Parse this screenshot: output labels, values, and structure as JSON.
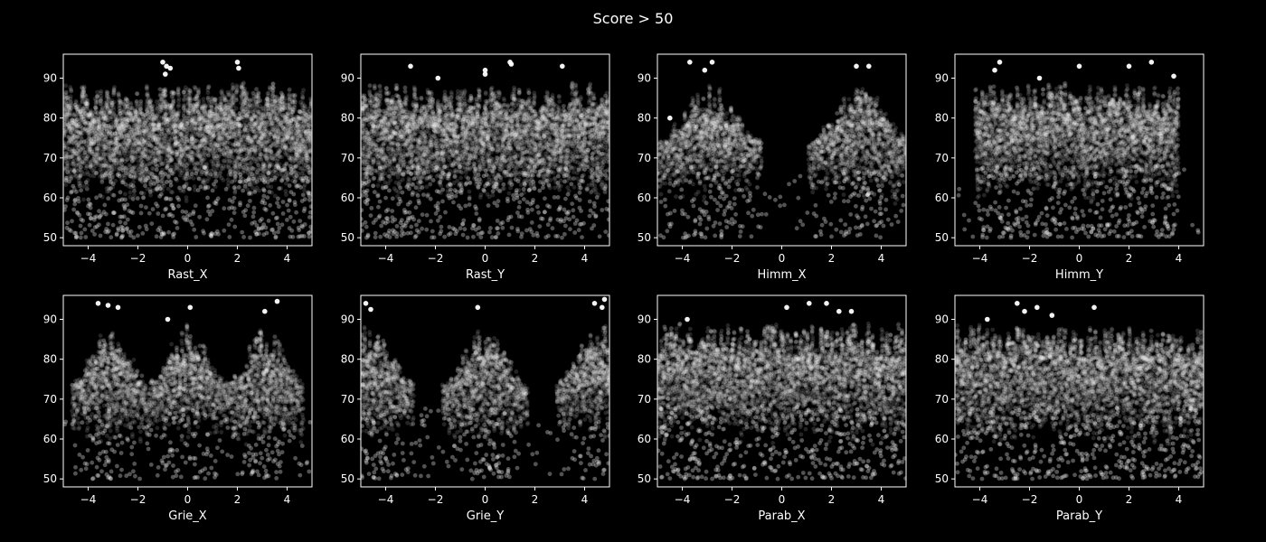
{
  "figure": {
    "title": "Score > 50",
    "background": "#000000",
    "foreground": "#ffffff",
    "point_color": "#ffffff"
  },
  "chart_data": [
    {
      "type": "scatter",
      "xlabel": "Rast_X",
      "xlim": [
        -5,
        5
      ],
      "ylim": [
        48,
        96
      ],
      "xticks": [
        -4,
        -2,
        0,
        2,
        4
      ],
      "yticks": [
        50,
        60,
        70,
        80,
        90
      ],
      "density_profile": "uniform",
      "band_centers": [],
      "band_halfwidth": 0,
      "top_points": [
        [
          -1,
          94
        ],
        [
          -0.85,
          93
        ],
        [
          -0.7,
          92.5
        ],
        [
          2,
          94
        ],
        [
          2.05,
          92.5
        ],
        [
          -0.9,
          91
        ]
      ]
    },
    {
      "type": "scatter",
      "xlabel": "Rast_Y",
      "xlim": [
        -5,
        5
      ],
      "ylim": [
        48,
        96
      ],
      "xticks": [
        -4,
        -2,
        0,
        2,
        4
      ],
      "yticks": [
        50,
        60,
        70,
        80,
        90
      ],
      "density_profile": "uniform",
      "band_centers": [],
      "band_halfwidth": 0,
      "top_points": [
        [
          -3,
          93
        ],
        [
          0,
          92
        ],
        [
          0,
          91
        ],
        [
          1,
          94
        ],
        [
          1.05,
          93.5
        ],
        [
          3.1,
          93
        ],
        [
          -1.9,
          90
        ]
      ]
    },
    {
      "type": "scatter",
      "xlabel": "Himm_X",
      "xlim": [
        -5,
        5
      ],
      "ylim": [
        48,
        96
      ],
      "xticks": [
        -4,
        -2,
        0,
        2,
        4
      ],
      "yticks": [
        50,
        60,
        70,
        80,
        90
      ],
      "density_profile": "bands",
      "band_centers": [
        -2.9,
        3.2
      ],
      "band_halfwidth": 1.6,
      "top_points": [
        [
          -3.7,
          94
        ],
        [
          -2.8,
          94
        ],
        [
          -3.1,
          92
        ],
        [
          3,
          93
        ],
        [
          3.5,
          93
        ],
        [
          -4.5,
          80
        ]
      ]
    },
    {
      "type": "scatter",
      "xlabel": "Himm_Y",
      "xlim": [
        -5,
        5
      ],
      "ylim": [
        48,
        96
      ],
      "xticks": [
        -4,
        -2,
        0,
        2,
        4
      ],
      "yticks": [
        50,
        60,
        70,
        80,
        90
      ],
      "density_profile": "window",
      "band_centers": [
        -0.1
      ],
      "band_halfwidth": 4.1,
      "top_points": [
        [
          -3.2,
          94
        ],
        [
          -3.4,
          92
        ],
        [
          0,
          93
        ],
        [
          2,
          93
        ],
        [
          2.9,
          94
        ],
        [
          3.8,
          90.5
        ],
        [
          -1.6,
          90
        ]
      ]
    },
    {
      "type": "scatter",
      "xlabel": "Grie_X",
      "xlim": [
        -5,
        5
      ],
      "ylim": [
        48,
        96
      ],
      "xticks": [
        -4,
        -2,
        0,
        2,
        4
      ],
      "yticks": [
        50,
        60,
        70,
        80,
        90
      ],
      "density_profile": "bands",
      "band_centers": [
        -3.1,
        0,
        3.1
      ],
      "band_halfwidth": 1.2,
      "top_points": [
        [
          -3.6,
          94
        ],
        [
          -3.2,
          93.5
        ],
        [
          -2.8,
          93
        ],
        [
          0.1,
          93
        ],
        [
          3.1,
          92
        ],
        [
          3.6,
          94.5
        ],
        [
          -0.8,
          90
        ]
      ]
    },
    {
      "type": "scatter",
      "xlabel": "Grie_Y",
      "xlim": [
        -5,
        5
      ],
      "ylim": [
        48,
        96
      ],
      "xticks": [
        -4,
        -2,
        0,
        2,
        4
      ],
      "yticks": [
        50,
        60,
        70,
        80,
        90
      ],
      "density_profile": "bands",
      "band_centers": [
        -4.6,
        0,
        4.6
      ],
      "band_halfwidth": 1.3,
      "top_points": [
        [
          -4.8,
          94
        ],
        [
          -4.6,
          92.5
        ],
        [
          -0.3,
          93
        ],
        [
          4.4,
          94
        ],
        [
          4.7,
          93
        ],
        [
          4.8,
          95
        ]
      ]
    },
    {
      "type": "scatter",
      "xlabel": "Parab_X",
      "xlim": [
        -5,
        5
      ],
      "ylim": [
        48,
        96
      ],
      "xticks": [
        -4,
        -2,
        0,
        2,
        4
      ],
      "yticks": [
        50,
        60,
        70,
        80,
        90
      ],
      "density_profile": "uniform",
      "band_centers": [],
      "band_halfwidth": 0,
      "top_points": [
        [
          0.2,
          93
        ],
        [
          1.1,
          94
        ],
        [
          1.8,
          94
        ],
        [
          2.3,
          92
        ],
        [
          2.8,
          92
        ],
        [
          -3.8,
          90
        ]
      ]
    },
    {
      "type": "scatter",
      "xlabel": "Parab_Y",
      "xlim": [
        -5,
        5
      ],
      "ylim": [
        48,
        96
      ],
      "xticks": [
        -4,
        -2,
        0,
        2,
        4
      ],
      "yticks": [
        50,
        60,
        70,
        80,
        90
      ],
      "density_profile": "uniform",
      "band_centers": [],
      "band_halfwidth": 0,
      "top_points": [
        [
          -2.5,
          94
        ],
        [
          -1.7,
          93
        ],
        [
          0.6,
          93
        ],
        [
          -2.2,
          92
        ],
        [
          -1.1,
          91
        ],
        [
          -3.7,
          90
        ]
      ]
    }
  ]
}
